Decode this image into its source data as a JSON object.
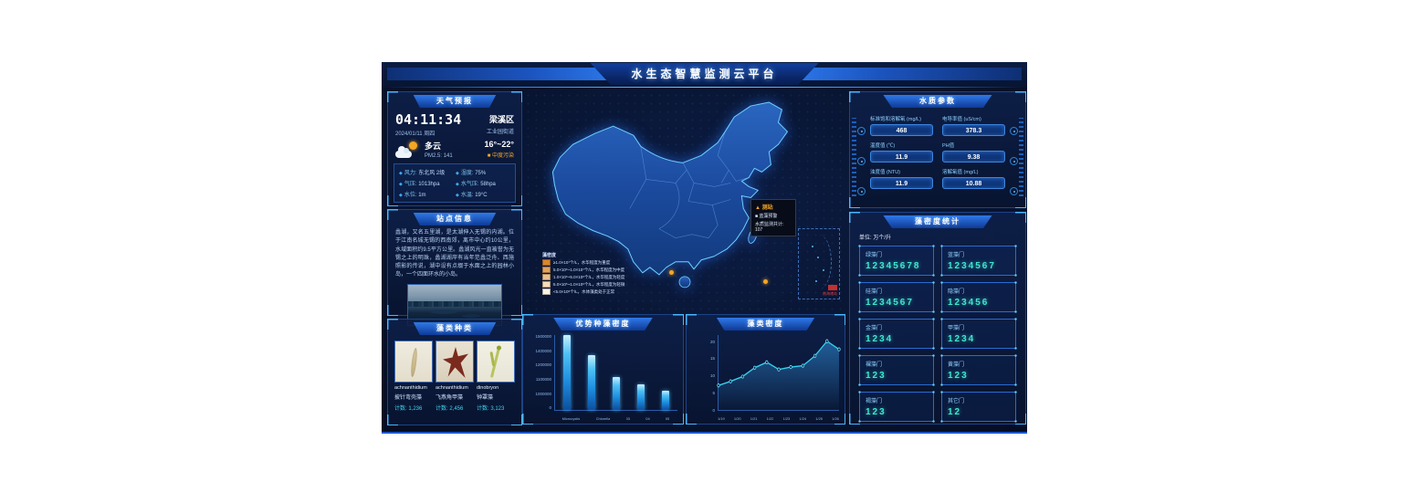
{
  "header": {
    "title": "水生态智慧监测云平台"
  },
  "weather": {
    "panel_title": "天气预报",
    "time": "04:11:34",
    "date": "2024/01/11 周四",
    "district": "梁溪区",
    "street": "工业园街道",
    "condition": "多云",
    "temp_range": "16°~22°",
    "pm25": "PM2.5:  141",
    "pollution_badge": "■ 中度污染",
    "accent_orange": "#f5a623",
    "stats": [
      {
        "icon": "◆",
        "label": "风力:",
        "value": "东北风 2级"
      },
      {
        "icon": "◆",
        "label": "湿度:",
        "value": "75%"
      },
      {
        "icon": "◆",
        "label": "气压:",
        "value": "1013hpa"
      },
      {
        "icon": "◆",
        "label": "水气压:",
        "value": "58hpa"
      },
      {
        "icon": "◆",
        "label": "水位:",
        "value": "1m"
      },
      {
        "icon": "◆",
        "label": "水温:",
        "value": "19°C"
      }
    ]
  },
  "station": {
    "panel_title": "站点信息",
    "description": "蠡湖，又名五里湖，是太湖伸入无锡的内湖。位于江南名城无锡的西南郊，离市中心约10公里，水域面积约9.5平方公里。蠡湖风光一直被誉为无锡之上的明珠，蠡湖湖岸有当年范蠡泛舟、西施照影的传说，湖中设有点缀于水面之上的园林小岛，一个四面环水的小岛。"
  },
  "algae_types": {
    "panel_title": "藻类种类",
    "items": [
      {
        "latin": "achnanthidium",
        "name": "披针弯壳藻",
        "count": "计数:  1,236"
      },
      {
        "latin": "achnanthidium",
        "name": "飞燕角甲藻",
        "count": "计数:  2,456"
      },
      {
        "latin": "dinobryon",
        "name": "钟罩藻",
        "count": "计数:  3,123"
      }
    ]
  },
  "map": {
    "tooltip": {
      "title": "▲ 测站",
      "line1": "■ 蓝藻预警",
      "line2": "水质监测共计: 107"
    },
    "legend": {
      "title": "藻密度",
      "rows": [
        {
          "color": "#d8862f",
          "text": "≥1.0×10⁷个/L，水华程度为重度"
        },
        {
          "color": "#e3a25b",
          "text": "5.0×10⁶~1.0×10⁷个/L，水华程度为中度"
        },
        {
          "color": "#eec089",
          "text": "1.0×10⁶~5.0×10⁶个/L，水华程度为轻度"
        },
        {
          "color": "#f7dcb8",
          "text": "5.0×10⁵~1.0×10⁶个/L，水华程度为轻微"
        },
        {
          "color": "#fdf3e3",
          "text": "<5.0×10⁵个/L，水体藻类处于正常"
        }
      ]
    },
    "inset_label": "南海诸岛"
  },
  "water_params": {
    "panel_title": "水质参数",
    "items": [
      {
        "label": "标准饱和溶解氧 (mg/L)",
        "value": "468"
      },
      {
        "label": "电导率值 (uS/cm)",
        "value": "378.3"
      },
      {
        "label": "温度值 (℃)",
        "value": "11.9"
      },
      {
        "label": "PH值",
        "value": "9.38"
      },
      {
        "label": "浊度值 (NTU)",
        "value": "11.9"
      },
      {
        "label": "溶解氧值 (mg/L)",
        "value": "10.88"
      }
    ]
  },
  "algae_stats": {
    "panel_title": "藻密度统计",
    "unit_label": "单位: 万个/升",
    "value_color": "#3ee6cf",
    "items": [
      {
        "label": "绿藻门",
        "value": "12345678"
      },
      {
        "label": "蓝藻门",
        "value": "1234567"
      },
      {
        "label": "硅藻门",
        "value": "1234567"
      },
      {
        "label": "隐藻门",
        "value": "123456"
      },
      {
        "label": "金藻门",
        "value": "1234"
      },
      {
        "label": "甲藻门",
        "value": "1234"
      },
      {
        "label": "裸藻门",
        "value": "123"
      },
      {
        "label": "黄藻门",
        "value": "123"
      },
      {
        "label": "褐藻门",
        "value": "123"
      },
      {
        "label": "其它门",
        "value": "12"
      }
    ]
  },
  "chart_data": [
    {
      "type": "bar",
      "title": "优势种藻密度",
      "categories": [
        "Microcystis",
        "Chlorella",
        "03",
        "04",
        "05"
      ],
      "values": [
        1500000,
        1330000,
        1120000,
        1070000,
        1030000
      ],
      "yticks_bottom_to_top": [
        "0",
        "1000000",
        "1100000",
        "1200000",
        "1400000",
        "1500000"
      ],
      "ylim": [
        0,
        1500000
      ],
      "xlabel": "",
      "ylabel": "",
      "bar_color": "#2fa7ef"
    },
    {
      "type": "line",
      "title": "藻类密度",
      "x_ticks": [
        "1/19",
        "1/20",
        "1/21",
        "1/22",
        "1/23",
        "1/24",
        "1/25",
        "1/26"
      ],
      "values": [
        7.2,
        8.4,
        9.8,
        12.4,
        14,
        11.9,
        12.6,
        13,
        15.9,
        20.2,
        17.8
      ],
      "yticks": [
        0,
        5,
        10,
        15,
        20
      ],
      "ylim": [
        0,
        22
      ],
      "line_color": "#35d3f0"
    }
  ]
}
